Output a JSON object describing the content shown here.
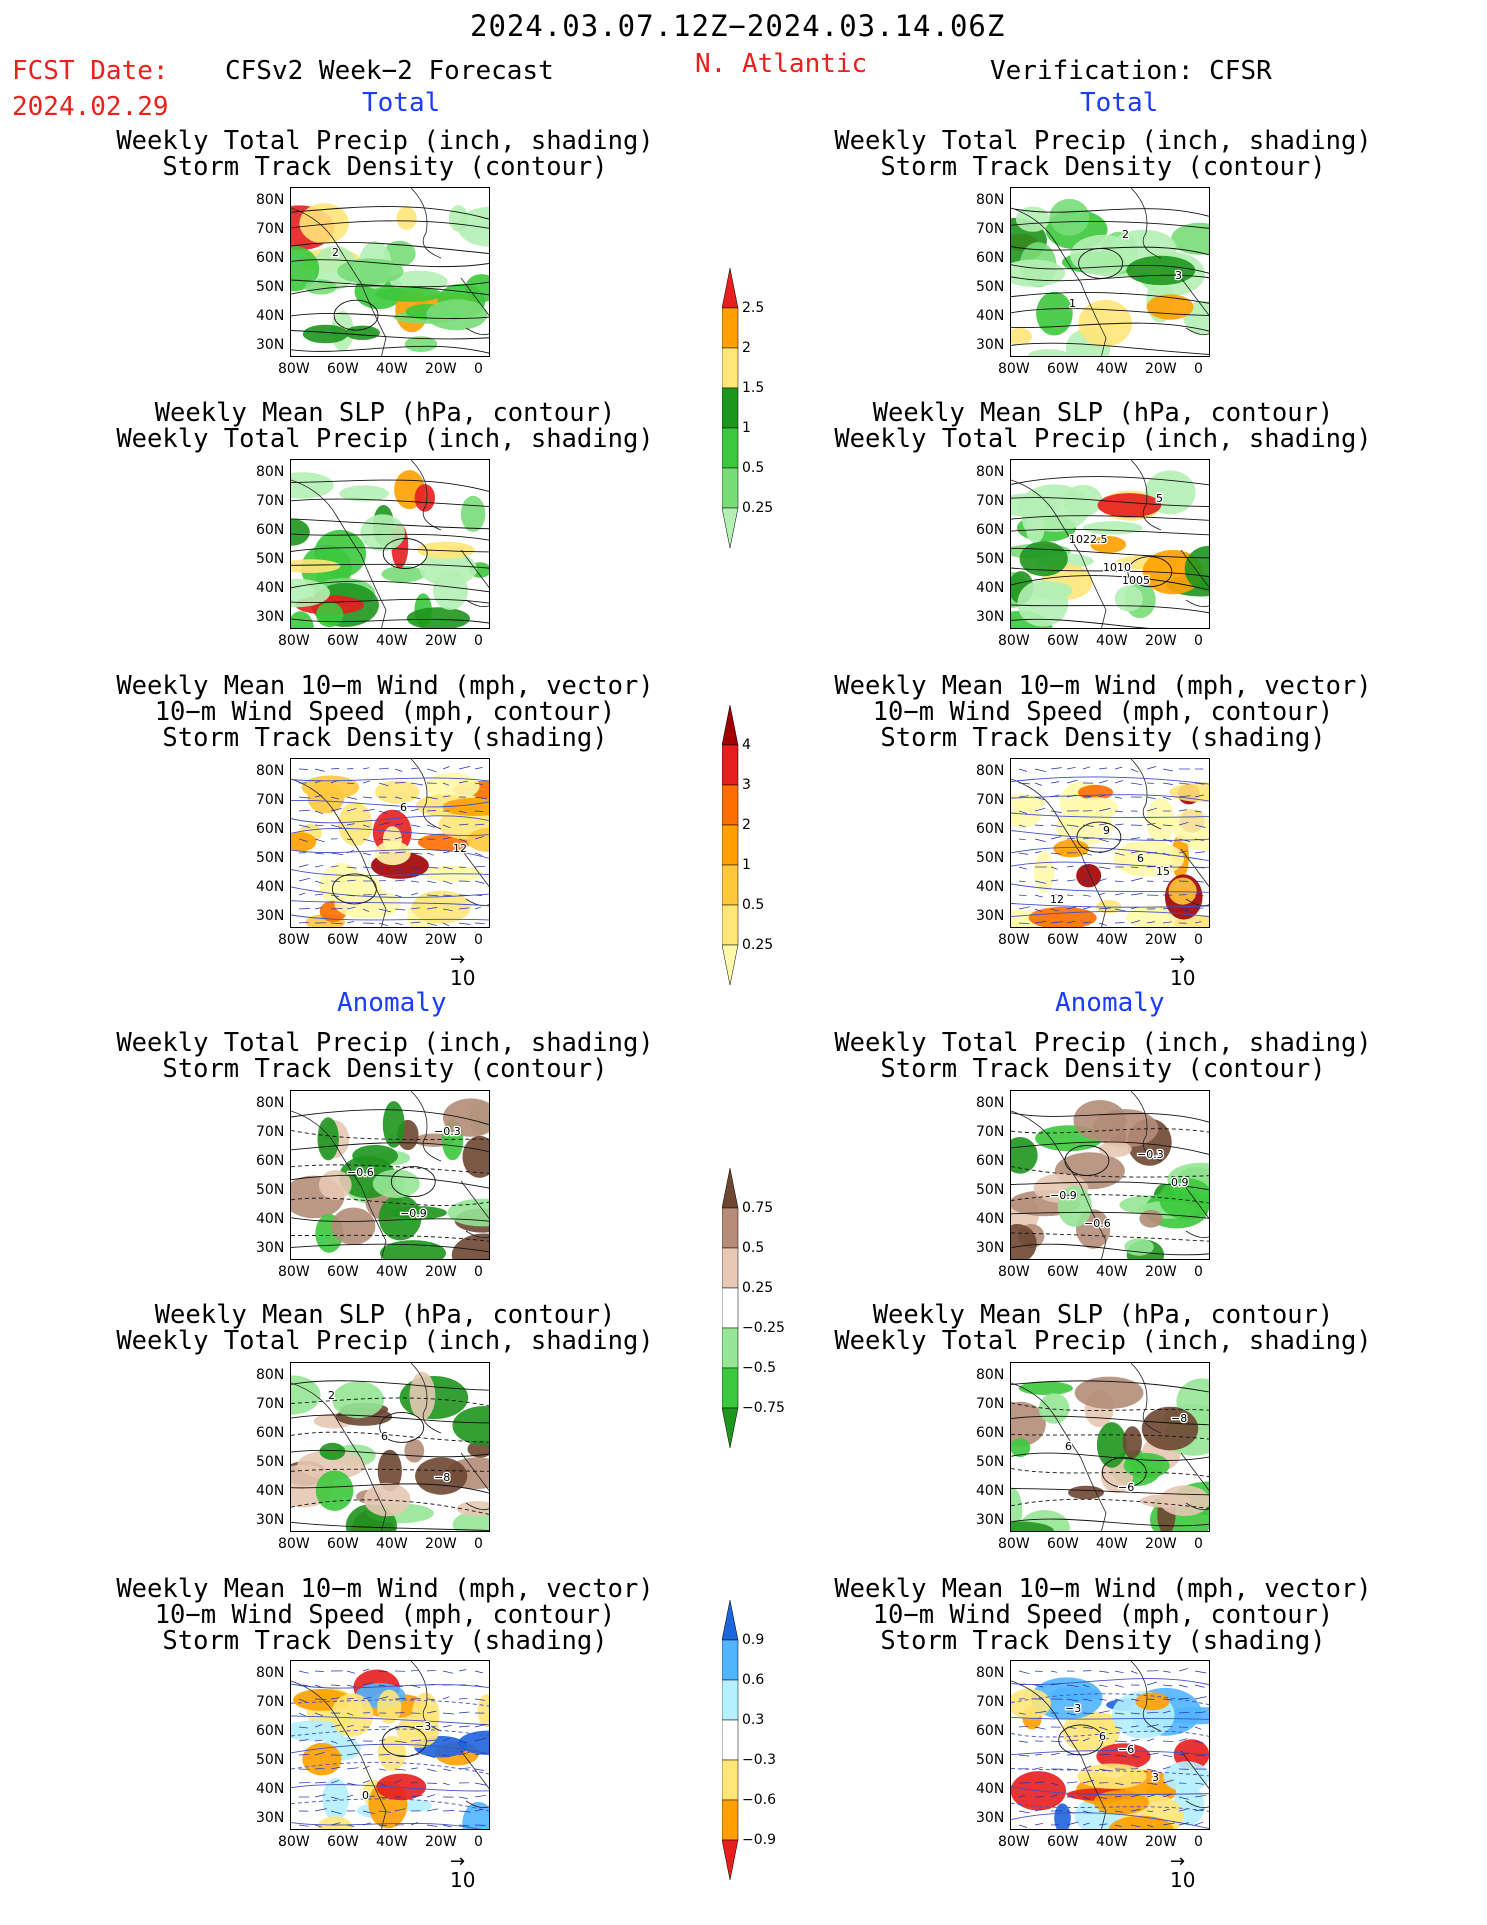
{
  "header": {
    "period": "2024.03.07.12Z−2024.03.14.06Z",
    "fcst_date_label": "FCST Date:",
    "fcst_date_value": "2024.02.29",
    "left_title": "CFSv2 Week−2 Forecast",
    "region": "N. Atlantic",
    "right_title": "Verification: CFSR"
  },
  "sections": {
    "total": "Total",
    "anomaly": "Anomaly"
  },
  "panel_titles": {
    "precip_track": [
      "Weekly Total Precip (inch, shading)",
      "Storm Track Density (contour)"
    ],
    "slp_precip": [
      "Weekly Mean SLP (hPa, contour)",
      "Weekly Total Precip (inch, shading)"
    ],
    "wind_track": [
      "Weekly Mean 10−m Wind (mph, vector)",
      "10−m Wind Speed (mph, contour)",
      "Storm Track Density (shading)"
    ]
  },
  "axes": {
    "lat_ticks": [
      "80N",
      "70N",
      "60N",
      "50N",
      "40N",
      "30N"
    ],
    "lon_ticks": [
      "80W",
      "60W",
      "40W",
      "20W",
      "0"
    ]
  },
  "vector_ref": "10",
  "colorbars": {
    "precip_total": {
      "levels": [
        "0.25",
        "0.5",
        "1",
        "1.5",
        "2",
        "2.5"
      ],
      "colors": [
        "#b4f0b4",
        "#78dc78",
        "#3cc83c",
        "#1e961e",
        "#ffe678",
        "#ffa000",
        "#e61e1e"
      ]
    },
    "track_total": {
      "levels": [
        "0.25",
        "0.5",
        "1",
        "2",
        "3",
        "4"
      ],
      "colors": [
        "#fffaaa",
        "#ffe678",
        "#ffc83c",
        "#ffa000",
        "#ff6e00",
        "#e61e1e",
        "#a00000"
      ]
    },
    "precip_anom": {
      "levels": [
        "0.75",
        "0.5",
        "0.25",
        "−0.25",
        "−0.5",
        "−0.75"
      ],
      "colors": [
        "#1e961e",
        "#3cc83c",
        "#96e696",
        "#ffffff",
        "#e6c8b4",
        "#b48c78",
        "#6e4632"
      ]
    },
    "track_anom": {
      "levels": [
        "0.9",
        "0.6",
        "0.3",
        "−0.3",
        "−0.6",
        "−0.9"
      ],
      "colors": [
        "#e61e1e",
        "#ffa000",
        "#ffe678",
        "#ffffff",
        "#b4f0ff",
        "#50b4ff",
        "#1e64dc"
      ]
    }
  },
  "contour_labels": {
    "fc_precip_track": [
      "2"
    ],
    "vf_precip_track": [
      "1",
      "2",
      "3"
    ],
    "vf_slp_precip": [
      "1010",
      "5",
      "1022.5",
      "1005"
    ],
    "fc_wind_track": [
      "6",
      "12"
    ],
    "vf_wind_track": [
      "6",
      "12",
      "9",
      "15"
    ],
    "fc_anom_precip_track": [
      "−0.3",
      "−0.6",
      "−0.9"
    ],
    "vf_anom_precip_track": [
      "0.9",
      "−0.6",
      "−0.3",
      "−0.9"
    ],
    "fc_anom_slp_precip": [
      "2",
      "6",
      "−8"
    ],
    "vf_anom_slp_precip": [
      "6",
      "−6",
      "−8"
    ],
    "fc_anom_wind_track": [
      "0",
      "−3"
    ],
    "vf_anom_wind_track": [
      "6",
      "3",
      "−3",
      "−6"
    ]
  }
}
